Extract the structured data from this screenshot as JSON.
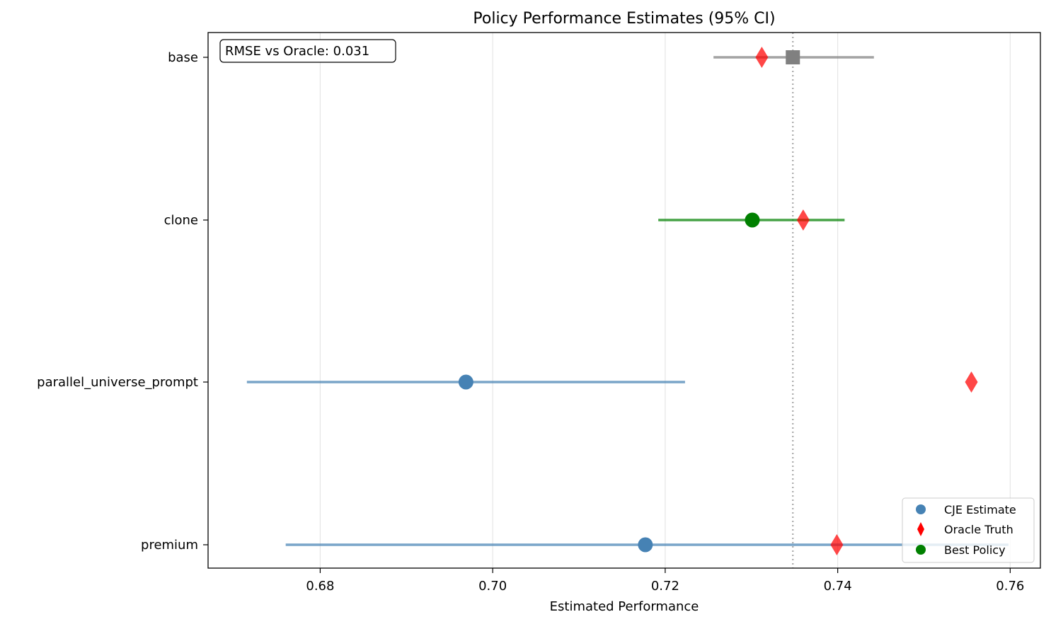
{
  "chart_data": {
    "type": "scatter",
    "title": "Policy Performance Estimates (95% CI)",
    "xlabel": "Estimated Performance",
    "ylabel": "",
    "xlim": [
      0.667,
      0.7635
    ],
    "x_ticks": [
      0.68,
      0.7,
      0.72,
      0.74,
      0.76
    ],
    "x_tick_labels": [
      "0.68",
      "0.70",
      "0.72",
      "0.74",
      "0.76"
    ],
    "grid": "x",
    "legend_position": "bottom-right",
    "annotation": "RMSE vs Oracle: 0.031",
    "reference_line": {
      "x": 0.7348,
      "style": "dotted"
    },
    "categories": [
      "base",
      "clone",
      "parallel_universe_prompt",
      "premium"
    ],
    "series": [
      {
        "name": "CJE Estimate",
        "marker": "circle",
        "color": "#4682b4",
        "values": [
          0.7348,
          0.7301,
          0.6969,
          0.7177
        ],
        "ci_low": [
          0.7256,
          0.7192,
          0.6715,
          0.676
        ],
        "ci_high": [
          0.7442,
          0.7408,
          0.7223,
          0.7598
        ],
        "marker_per_point": [
          "square",
          "circle",
          "circle",
          "circle"
        ],
        "color_per_point": [
          "#808080",
          "#008000",
          "#4682b4",
          "#4682b4"
        ]
      },
      {
        "name": "Oracle Truth",
        "marker": "diamond",
        "color": "#ff0000",
        "values": [
          0.7312,
          0.736,
          0.7555,
          0.7399
        ]
      },
      {
        "name": "Best Policy",
        "marker": "circle",
        "color": "#008000",
        "values": [
          null,
          0.7301,
          null,
          null
        ]
      }
    ]
  }
}
